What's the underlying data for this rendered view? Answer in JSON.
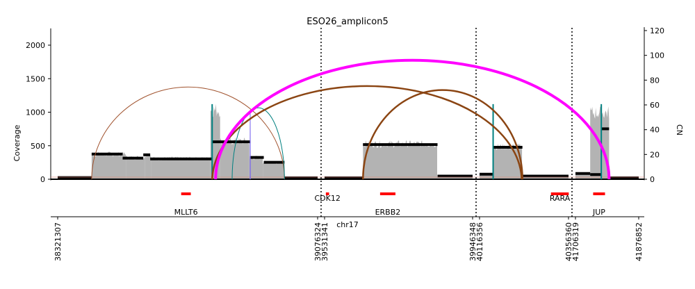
{
  "chart_data": {
    "type": "amplicon-structure",
    "title": "ESO26_amplicon5",
    "y_left": {
      "label": "Coverage",
      "ticks": [
        0,
        500,
        1000,
        1500,
        2000
      ],
      "range": [
        -15,
        2250
      ]
    },
    "y_right": {
      "label": "CN",
      "ticks": [
        0,
        20,
        40,
        60,
        80,
        100,
        120
      ],
      "range": [
        -0.8,
        122.7
      ]
    },
    "x_label": "chr17",
    "segments": [
      {
        "chrom": "chr17",
        "start": 38321307,
        "end": 39076324
      },
      {
        "chrom": "chr17",
        "start": 39531341,
        "end": 39946348
      },
      {
        "chrom": "chr17",
        "start": 40116356,
        "end": 40356360
      },
      {
        "chrom": "chr17",
        "start": 41706319,
        "end": 41876852
      }
    ],
    "segment_boundary_labels": [
      "38321307",
      "39076324",
      "39531341",
      "39946348",
      "40116356",
      "40356360",
      "41706319",
      "41876852"
    ],
    "coverage_blocks": [
      {
        "seg": 0,
        "start": 38321307,
        "end": 38420000,
        "coverage": 12
      },
      {
        "seg": 0,
        "start": 38420000,
        "end": 38520000,
        "coverage": 370
      },
      {
        "seg": 0,
        "start": 38520000,
        "end": 38574000,
        "coverage": 320
      },
      {
        "seg": 0,
        "start": 38574000,
        "end": 38592000,
        "coverage": 360
      },
      {
        "seg": 0,
        "start": 38592000,
        "end": 38765000,
        "coverage": 305
      },
      {
        "seg": 0,
        "start": 38765000,
        "end": 38793000,
        "coverage": 1020
      },
      {
        "seg": 0,
        "start": 38793000,
        "end": 38878000,
        "coverage": 560
      },
      {
        "seg": 0,
        "start": 38878000,
        "end": 38917000,
        "coverage": 320
      },
      {
        "seg": 0,
        "start": 38917000,
        "end": 38980000,
        "coverage": 250
      },
      {
        "seg": 0,
        "start": 38980000,
        "end": 39076324,
        "coverage": 15
      },
      {
        "seg": 1,
        "start": 39531341,
        "end": 39639000,
        "coverage": 15
      },
      {
        "seg": 1,
        "start": 39639000,
        "end": 39847000,
        "coverage": 520
      },
      {
        "seg": 1,
        "start": 39847000,
        "end": 39946348,
        "coverage": 30
      },
      {
        "seg": 2,
        "start": 40116356,
        "end": 40153000,
        "coverage": 70
      },
      {
        "seg": 2,
        "start": 40153000,
        "end": 40231000,
        "coverage": 480
      },
      {
        "seg": 2,
        "start": 40231000,
        "end": 40356360,
        "coverage": 40
      },
      {
        "seg": 3,
        "start": 41706319,
        "end": 41746000,
        "coverage": 80
      },
      {
        "seg": 3,
        "start": 41746000,
        "end": 41797000,
        "coverage": 980
      },
      {
        "seg": 3,
        "start": 41797000,
        "end": 41876852,
        "coverage": 10
      }
    ],
    "copy_number_segments": [
      {
        "seg": 0,
        "start": 38321307,
        "end": 38420000,
        "cn": 1.3
      },
      {
        "seg": 0,
        "start": 38420000,
        "end": 38510000,
        "cn": 20.3
      },
      {
        "seg": 0,
        "start": 38510000,
        "end": 38570000,
        "cn": 17.0
      },
      {
        "seg": 0,
        "start": 38570000,
        "end": 38590000,
        "cn": 19.7
      },
      {
        "seg": 0,
        "start": 38590000,
        "end": 38770000,
        "cn": 16.4
      },
      {
        "seg": 0,
        "start": 38770000,
        "end": 38880000,
        "cn": 30.2
      },
      {
        "seg": 0,
        "start": 38880000,
        "end": 38920000,
        "cn": 17.6
      },
      {
        "seg": 0,
        "start": 38920000,
        "end": 38980000,
        "cn": 13.7
      },
      {
        "seg": 0,
        "start": 38980000,
        "end": 39076324,
        "cn": 1.1
      },
      {
        "seg": 1,
        "start": 39531341,
        "end": 39639000,
        "cn": 1.1
      },
      {
        "seg": 1,
        "start": 39639000,
        "end": 39848000,
        "cn": 28.0
      },
      {
        "seg": 1,
        "start": 39848000,
        "end": 39946348,
        "cn": 2.5
      },
      {
        "seg": 2,
        "start": 40116356,
        "end": 40153000,
        "cn": 4.1
      },
      {
        "seg": 2,
        "start": 40153000,
        "end": 40232000,
        "cn": 25.8
      },
      {
        "seg": 2,
        "start": 40232000,
        "end": 40356360,
        "cn": 2.5
      },
      {
        "seg": 3,
        "start": 41706319,
        "end": 41746000,
        "cn": 4.6
      },
      {
        "seg": 3,
        "start": 41746000,
        "end": 41776000,
        "cn": 3.8
      },
      {
        "seg": 3,
        "start": 41776000,
        "end": 41797000,
        "cn": 40.7
      },
      {
        "seg": 3,
        "start": 41797000,
        "end": 41876852,
        "cn": 1.1
      }
    ],
    "breakpoint_arcs": [
      {
        "a_seg": 0,
        "a_pos": 38420000,
        "b_seg": 0,
        "b_pos": 38980000,
        "support": 1.0,
        "color": "#a0522d",
        "height": 0.62
      },
      {
        "a_seg": 0,
        "a_pos": 38828000,
        "b_seg": 0,
        "b_pos": 38980000,
        "support": 1.0,
        "color": "#008080",
        "height": 0.48
      },
      {
        "a_seg": 0,
        "a_pos": 38880000,
        "b_seg": 0,
        "b_pos": 38881000,
        "support": 1.0,
        "color": "#7b68ee",
        "height": 0.45
      },
      {
        "a_seg": 0,
        "a_pos": 38770000,
        "b_seg": 2,
        "b_pos": 40230000,
        "support": 2.5,
        "color": "#8b4513",
        "height": 0.64
      },
      {
        "a_seg": 1,
        "a_pos": 39639000,
        "b_seg": 2,
        "b_pos": 40232000,
        "support": 2.5,
        "color": "#8b4513",
        "height": 0.6
      },
      {
        "a_seg": 0,
        "a_pos": 38780000,
        "b_seg": 3,
        "b_pos": 41797000,
        "support": 4.0,
        "color": "#ff00ff",
        "height": 0.8
      }
    ],
    "vertical_breakpoints": [
      {
        "seg": 0,
        "pos": 38770000,
        "color": "#008080",
        "coverage": 1120
      },
      {
        "seg": 2,
        "pos": 40153000,
        "color": "#008080",
        "coverage": 1120
      },
      {
        "seg": 3,
        "pos": 41776000,
        "color": "#008080",
        "coverage": 1120
      }
    ],
    "genes": [
      {
        "name": "MLLT6",
        "seg": 0,
        "start": 38680000,
        "end": 38708000
      },
      {
        "name": "CDK12",
        "seg": 1,
        "start": 39535000,
        "end": 39544000
      },
      {
        "name": "ERBB2",
        "seg": 1,
        "start": 39687000,
        "end": 39730000
      },
      {
        "name": "RARA",
        "seg": 2,
        "start": 40309000,
        "end": 40357000
      },
      {
        "name": "JUP",
        "seg": 3,
        "start": 41754000,
        "end": 41786000
      }
    ],
    "colors": {
      "coverage": "#b3b3b3",
      "cn_segments": "#000000",
      "genes": "#ff0000",
      "separators": "#000000"
    }
  }
}
